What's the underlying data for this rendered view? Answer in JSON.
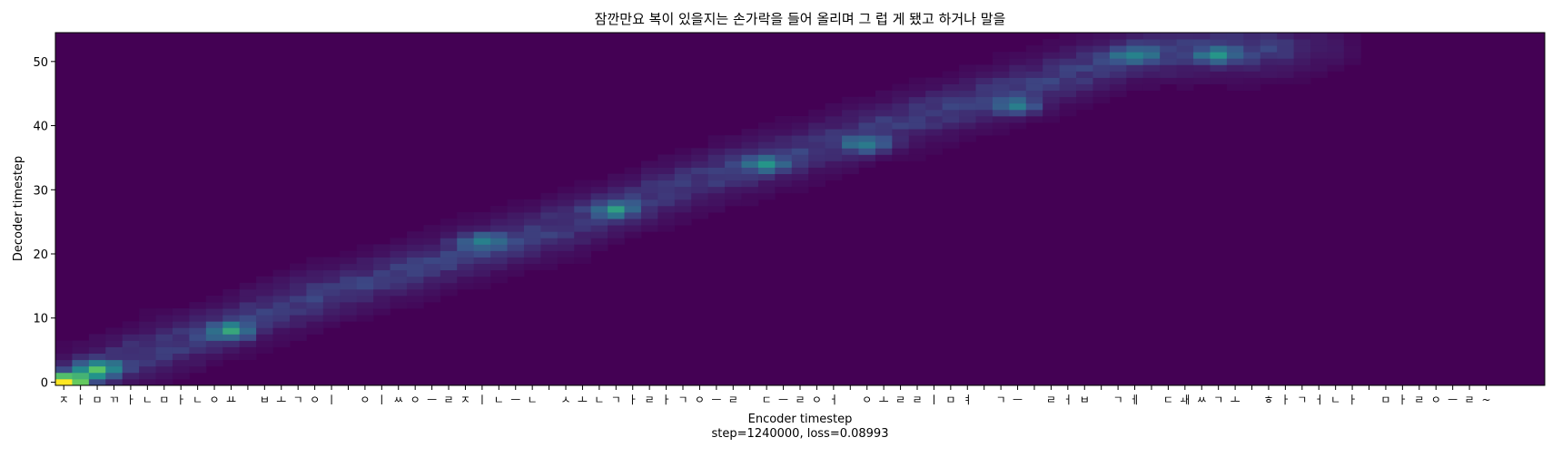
{
  "chart_data": {
    "type": "heatmap",
    "title": "잠깐만요 복이 있을지는 손가락을 들어 올리며 그 럽 게 됐고 하거나 말을",
    "xlabel": "Encoder timestep",
    "xlabel_sub": "step=1240000, loss=0.08993",
    "ylabel": "Decoder timestep",
    "colormap": "viridis",
    "xlim": [
      -0.5,
      88.5
    ],
    "ylim": [
      -0.5,
      54.5
    ],
    "y_ticks": [
      0,
      10,
      20,
      30,
      40,
      50
    ],
    "x_tick_labels": [
      "ㅈ",
      "ㅏ",
      "ㅁ",
      "ㄲ",
      "ㅏ",
      "ㄴ",
      "ㅁ",
      "ㅏ",
      "ㄴ",
      "ㅇ",
      "ㅛ",
      " ",
      "ㅂ",
      "ㅗ",
      "ㄱ",
      "ㅇ",
      "ㅣ",
      " ",
      "ㅇ",
      "ㅣ",
      "ㅆ",
      "ㅇ",
      "ㅡ",
      "ㄹ",
      "ㅈ",
      "ㅣ",
      "ㄴ",
      "ㅡ",
      "ㄴ",
      " ",
      "ㅅ",
      "ㅗ",
      "ㄴ",
      "ㄱ",
      "ㅏ",
      "ㄹ",
      "ㅏ",
      "ㄱ",
      "ㅇ",
      "ㅡ",
      "ㄹ",
      " ",
      "ㄷ",
      "ㅡ",
      "ㄹ",
      "ㅇ",
      "ㅓ",
      " ",
      "ㅇ",
      "ㅗ",
      "ㄹ",
      "ㄹ",
      "ㅣ",
      "ㅁ",
      "ㅕ",
      " ",
      "ㄱ",
      "ㅡ",
      " ",
      "ㄹ",
      "ㅓ",
      "ㅂ",
      " ",
      "ㄱ",
      "ㅔ",
      " ",
      "ㄷ",
      "ㅙ",
      "ㅆ",
      "ㄱ",
      "ㅗ",
      " ",
      "ㅎ",
      "ㅏ",
      "ㄱ",
      "ㅓ",
      "ㄴ",
      "ㅏ",
      " ",
      "ㅁ",
      "ㅏ",
      "ㄹ",
      "ㅇ",
      "ㅡ",
      "ㄹ",
      "~"
    ],
    "alignment_path": {
      "x": [
        0,
        4,
        8,
        12,
        16,
        20,
        24,
        28,
        32,
        36,
        40,
        44,
        48,
        52,
        56,
        60,
        64,
        68,
        72,
        76,
        80,
        84,
        88
      ],
      "y": [
        0,
        4,
        7,
        11,
        14,
        17,
        20,
        23,
        26,
        30,
        33,
        36,
        39,
        42,
        45,
        48,
        51,
        52,
        52,
        52,
        52,
        52,
        52
      ]
    },
    "peaks": [
      {
        "x": 0,
        "y": 0,
        "value": 1.0
      },
      {
        "x": 2,
        "y": 2,
        "value": 0.55
      },
      {
        "x": 10,
        "y": 8,
        "value": 0.42
      },
      {
        "x": 25,
        "y": 22,
        "value": 0.3
      },
      {
        "x": 33,
        "y": 27,
        "value": 0.35
      },
      {
        "x": 42,
        "y": 34,
        "value": 0.3
      },
      {
        "x": 48,
        "y": 37,
        "value": 0.3
      },
      {
        "x": 57,
        "y": 43,
        "value": 0.32
      },
      {
        "x": 64,
        "y": 51,
        "value": 0.3
      },
      {
        "x": 69,
        "y": 51,
        "value": 0.35
      }
    ]
  }
}
